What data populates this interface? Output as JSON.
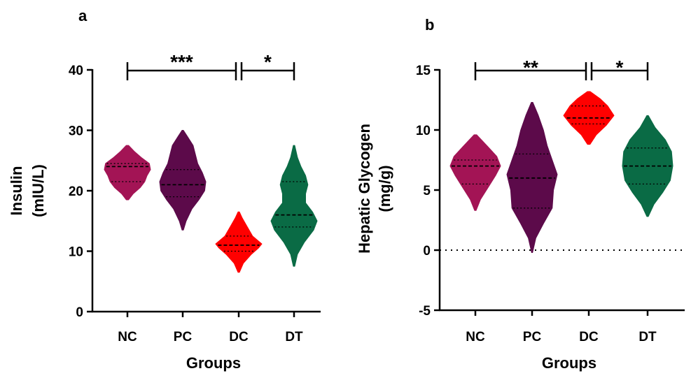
{
  "chart_data": [
    {
      "panel": "a",
      "type": "violin",
      "xlabel": "Groups",
      "ylabel_lines": [
        "Insulin",
        "(mIU/L)"
      ],
      "ylim": [
        0,
        40
      ],
      "yticks": [
        0,
        10,
        20,
        30,
        40
      ],
      "categories": [
        "NC",
        "PC",
        "DC",
        "DT"
      ],
      "series": [
        {
          "group": "NC",
          "color": "#a31455",
          "min": 18.5,
          "max": 27.5,
          "q1": 21.5,
          "median": 24.0,
          "q3": 24.5,
          "shape": [
            [
              18.5,
              0.05
            ],
            [
              19.5,
              0.25
            ],
            [
              20.5,
              0.55
            ],
            [
              21.5,
              0.75
            ],
            [
              22.5,
              0.85
            ],
            [
              23.5,
              1.0
            ],
            [
              24.5,
              0.95
            ],
            [
              25.5,
              0.6
            ],
            [
              26.5,
              0.3
            ],
            [
              27.5,
              0.05
            ]
          ]
        },
        {
          "group": "PC",
          "color": "#5c0a4a",
          "min": 13.5,
          "max": 30.0,
          "q1": 19.0,
          "median": 21.0,
          "q3": 23.5,
          "shape": [
            [
              13.5,
              0.03
            ],
            [
              15,
              0.15
            ],
            [
              17,
              0.4
            ],
            [
              18.5,
              0.7
            ],
            [
              20,
              0.95
            ],
            [
              21.5,
              1.0
            ],
            [
              23,
              0.85
            ],
            [
              24.5,
              0.65
            ],
            [
              26,
              0.55
            ],
            [
              27.5,
              0.45
            ],
            [
              29,
              0.2
            ],
            [
              30,
              0.03
            ]
          ]
        },
        {
          "group": "DC",
          "color": "#ff0000",
          "min": 6.5,
          "max": 16.5,
          "q1": 10.0,
          "median": 11.0,
          "q3": 12.5,
          "shape": [
            [
              6.5,
              0.03
            ],
            [
              8,
              0.2
            ],
            [
              9.5,
              0.55
            ],
            [
              10.5,
              0.85
            ],
            [
              11.2,
              1.0
            ],
            [
              12.5,
              0.6
            ],
            [
              13.5,
              0.45
            ],
            [
              14.5,
              0.3
            ],
            [
              15.5,
              0.15
            ],
            [
              16.5,
              0.03
            ]
          ]
        },
        {
          "group": "DT",
          "color": "#0a6b45",
          "min": 7.5,
          "max": 27.5,
          "q1": 14.0,
          "median": 16.0,
          "q3": 21.5,
          "shape": [
            [
              7.5,
              0.03
            ],
            [
              9.5,
              0.15
            ],
            [
              11.5,
              0.45
            ],
            [
              13.5,
              0.85
            ],
            [
              15,
              1.0
            ],
            [
              16.5,
              0.8
            ],
            [
              18,
              0.5
            ],
            [
              19.5,
              0.5
            ],
            [
              21,
              0.6
            ],
            [
              22.5,
              0.5
            ],
            [
              24,
              0.3
            ],
            [
              25.5,
              0.15
            ],
            [
              27.5,
              0.03
            ]
          ]
        }
      ],
      "significance": [
        {
          "from": "NC",
          "to": "DC",
          "label": "***"
        },
        {
          "from": "DC",
          "to": "DT",
          "label": "*"
        }
      ]
    },
    {
      "panel": "b",
      "type": "violin",
      "xlabel": "Groups",
      "ylabel_lines": [
        "Hepatic Glycogen",
        "(mg/g)"
      ],
      "ylim": [
        -5,
        15
      ],
      "yticks": [
        -5,
        0,
        5,
        10,
        15
      ],
      "reference_line": 0,
      "categories": [
        "NC",
        "PC",
        "DC",
        "DT"
      ],
      "series": [
        {
          "group": "NC",
          "color": "#a31455",
          "min": 3.3,
          "max": 9.6,
          "q1": 5.5,
          "median": 7.0,
          "q3": 7.5,
          "shape": [
            [
              3.3,
              0.03
            ],
            [
              4.2,
              0.2
            ],
            [
              5.2,
              0.5
            ],
            [
              6.2,
              0.8
            ],
            [
              7,
              1.0
            ],
            [
              7.8,
              0.85
            ],
            [
              8.6,
              0.5
            ],
            [
              9.6,
              0.05
            ]
          ]
        },
        {
          "group": "PC",
          "color": "#5c0a4a",
          "min": -0.2,
          "max": 12.3,
          "q1": 3.5,
          "median": 6.0,
          "q3": 8.0,
          "shape": [
            [
              -0.2,
              0.02
            ],
            [
              1,
              0.15
            ],
            [
              2.2,
              0.45
            ],
            [
              3.5,
              0.8
            ],
            [
              5,
              0.85
            ],
            [
              6.3,
              1.0
            ],
            [
              7.5,
              0.8
            ],
            [
              8.7,
              0.6
            ],
            [
              10,
              0.45
            ],
            [
              11.2,
              0.25
            ],
            [
              12.3,
              0.03
            ]
          ]
        },
        {
          "group": "DC",
          "color": "#ff0000",
          "min": 8.8,
          "max": 13.2,
          "q1": 10.5,
          "median": 11.0,
          "q3": 12.0,
          "shape": [
            [
              8.8,
              0.05
            ],
            [
              9.6,
              0.3
            ],
            [
              10.4,
              0.7
            ],
            [
              11.2,
              1.0
            ],
            [
              12,
              0.75
            ],
            [
              12.6,
              0.45
            ],
            [
              13.2,
              0.05
            ]
          ]
        },
        {
          "group": "DT",
          "color": "#0a6b45",
          "min": 2.8,
          "max": 11.2,
          "q1": 5.5,
          "median": 7.0,
          "q3": 8.5,
          "shape": [
            [
              2.8,
              0.03
            ],
            [
              3.8,
              0.25
            ],
            [
              4.8,
              0.6
            ],
            [
              5.8,
              0.9
            ],
            [
              7,
              1.0
            ],
            [
              8.2,
              0.95
            ],
            [
              9.2,
              0.7
            ],
            [
              10.2,
              0.3
            ],
            [
              11.2,
              0.03
            ]
          ]
        }
      ],
      "significance": [
        {
          "from": "NC",
          "to": "DC",
          "label": "**"
        },
        {
          "from": "DC",
          "to": "DT",
          "label": "*"
        }
      ]
    }
  ]
}
